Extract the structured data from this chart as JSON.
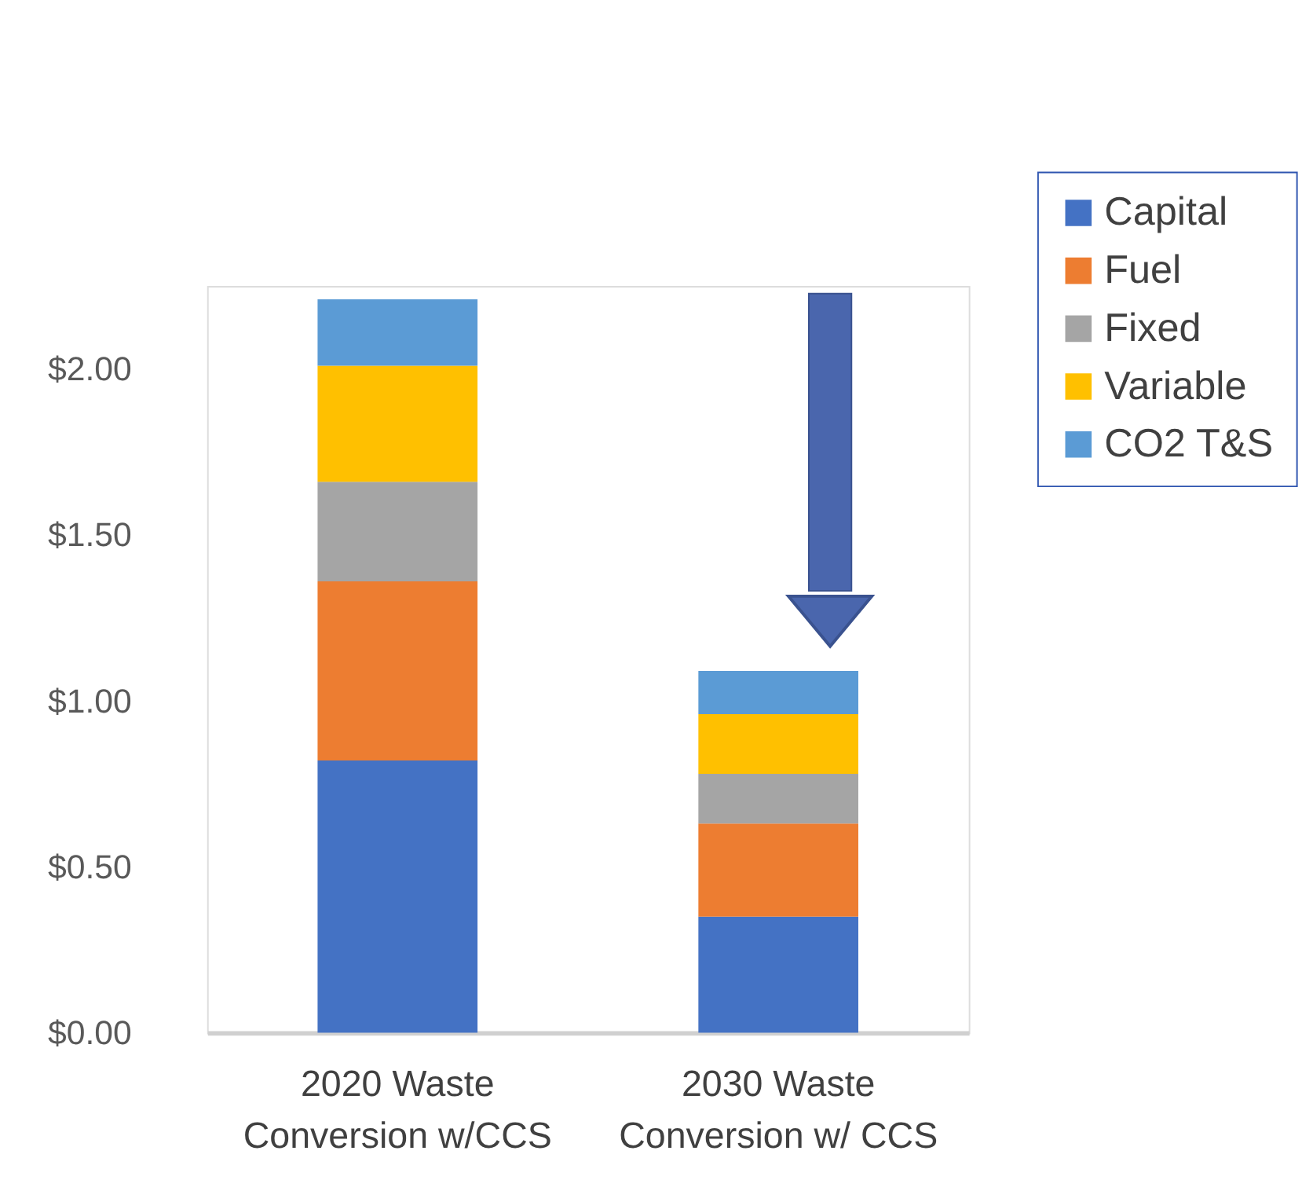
{
  "chart_data": {
    "type": "bar",
    "stacked": true,
    "categories": [
      "2020 Waste Conversion w/CCS",
      "2030 Waste Conversion w/ CCS"
    ],
    "series": [
      {
        "name": "Capital",
        "color": "#4472c4",
        "values": [
          0.82,
          0.35
        ]
      },
      {
        "name": "Fuel",
        "color": "#ed7d31",
        "values": [
          0.54,
          0.28
        ]
      },
      {
        "name": "Fixed",
        "color": "#a5a5a5",
        "values": [
          0.3,
          0.15
        ]
      },
      {
        "name": "Variable",
        "color": "#ffc000",
        "values": [
          0.35,
          0.18
        ]
      },
      {
        "name": "CO2 T&S",
        "color": "#5b9bd5",
        "values": [
          0.2,
          0.13
        ]
      }
    ],
    "ylim": [
      0,
      2.25
    ],
    "yticks": [
      {
        "value": 0,
        "label": "$0.00"
      },
      {
        "value": 0.5,
        "label": "$0.50"
      },
      {
        "value": 1,
        "label": "$1.00"
      },
      {
        "value": 1.5,
        "label": "$1.50"
      },
      {
        "value": 2,
        "label": "$2.00"
      }
    ],
    "grid": false,
    "legend": "top right"
  }
}
